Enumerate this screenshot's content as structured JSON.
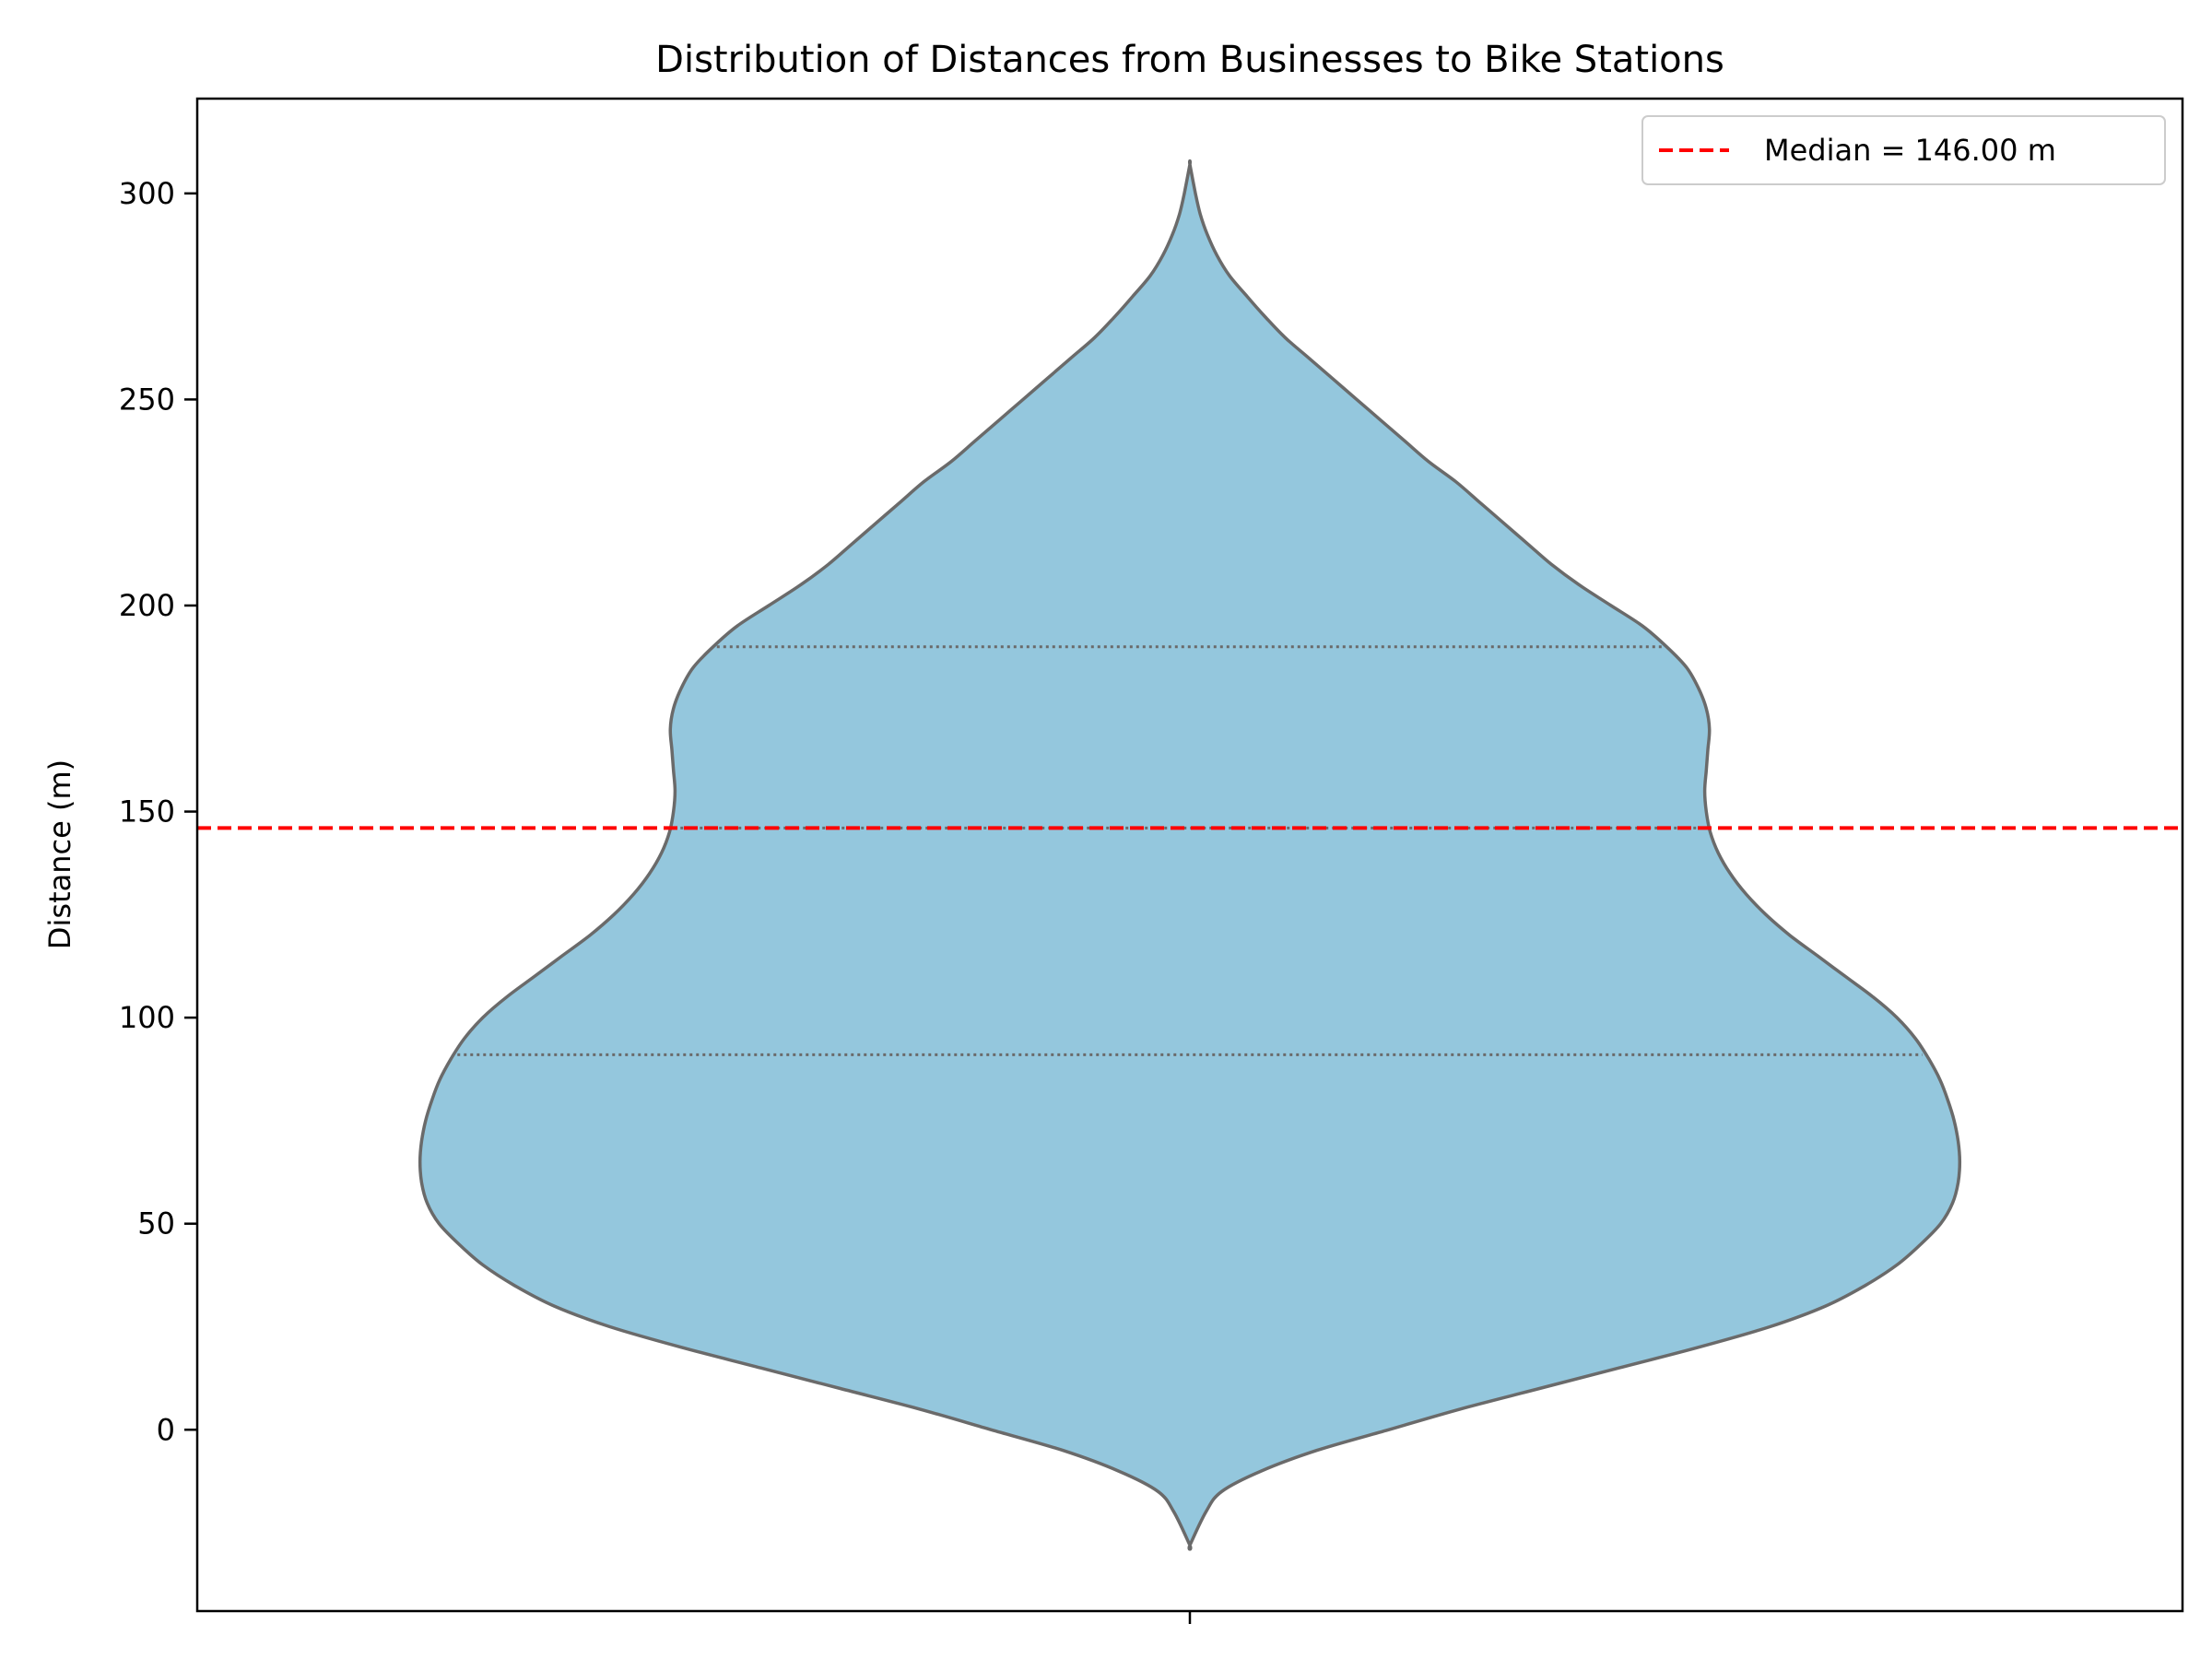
{
  "chart_data": {
    "type": "violin",
    "title": "Distribution of Distances from Businesses to Bike Stations",
    "xlabel": "",
    "ylabel": "Distance (m)",
    "ylim": [
      -44,
      323
    ],
    "yticks": [
      0,
      50,
      100,
      150,
      200,
      250,
      300
    ],
    "grid": false,
    "legend": {
      "placement": "top-right",
      "entries": [
        "Median = 146.00 m"
      ]
    },
    "median_line": {
      "value": 146.0,
      "label": "Median = 146.00 m",
      "style": "dashed",
      "color": "#ff0000"
    },
    "violin": {
      "fill_color": "#94c7dd",
      "edge_color": "#6a6a6a",
      "y_min": -28,
      "y_max": 307,
      "quartiles": {
        "q1": 91,
        "median": 146,
        "q3": 190
      },
      "density_profile": [
        [
          -28,
          0.0
        ],
        [
          -20,
          0.02
        ],
        [
          -15,
          0.04
        ],
        [
          -10,
          0.09
        ],
        [
          -5,
          0.16
        ],
        [
          0,
          0.25
        ],
        [
          5,
          0.34
        ],
        [
          10,
          0.44
        ],
        [
          15,
          0.54
        ],
        [
          20,
          0.64
        ],
        [
          25,
          0.73
        ],
        [
          30,
          0.8
        ],
        [
          35,
          0.85
        ],
        [
          40,
          0.89
        ],
        [
          45,
          0.92
        ],
        [
          50,
          0.945
        ],
        [
          55,
          0.96
        ],
        [
          60,
          0.967
        ],
        [
          65,
          0.969
        ],
        [
          70,
          0.967
        ],
        [
          75,
          0.962
        ],
        [
          80,
          0.954
        ],
        [
          85,
          0.944
        ],
        [
          90,
          0.93
        ],
        [
          95,
          0.913
        ],
        [
          100,
          0.89
        ],
        [
          105,
          0.86
        ],
        [
          110,
          0.825
        ],
        [
          115,
          0.79
        ],
        [
          120,
          0.755
        ],
        [
          125,
          0.725
        ],
        [
          130,
          0.7
        ],
        [
          135,
          0.68
        ],
        [
          140,
          0.665
        ],
        [
          145,
          0.655
        ],
        [
          150,
          0.65
        ],
        [
          155,
          0.648
        ],
        [
          160,
          0.65
        ],
        [
          165,
          0.652
        ],
        [
          170,
          0.654
        ],
        [
          175,
          0.65
        ],
        [
          180,
          0.64
        ],
        [
          185,
          0.625
        ],
        [
          190,
          0.6
        ],
        [
          195,
          0.57
        ],
        [
          200,
          0.53
        ],
        [
          205,
          0.49
        ],
        [
          210,
          0.455
        ],
        [
          215,
          0.425
        ],
        [
          220,
          0.395
        ],
        [
          225,
          0.365
        ],
        [
          230,
          0.335
        ],
        [
          235,
          0.3
        ],
        [
          240,
          0.27
        ],
        [
          245,
          0.24
        ],
        [
          250,
          0.21
        ],
        [
          255,
          0.18
        ],
        [
          260,
          0.15
        ],
        [
          265,
          0.12
        ],
        [
          270,
          0.095
        ],
        [
          275,
          0.072
        ],
        [
          280,
          0.05
        ],
        [
          285,
          0.034
        ],
        [
          290,
          0.022
        ],
        [
          295,
          0.013
        ],
        [
          300,
          0.007
        ],
        [
          307,
          0.0
        ]
      ]
    }
  }
}
